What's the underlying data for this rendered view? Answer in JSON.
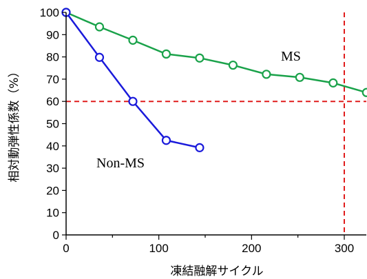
{
  "chart_data": {
    "type": "line",
    "title": "",
    "xlabel": "凍結融解サイクル",
    "ylabel": "相対動弾性係数（%）",
    "xlim": [
      0,
      325
    ],
    "ylim": [
      0,
      100
    ],
    "xticks": [
      0,
      100,
      200,
      300
    ],
    "yticks": [
      0,
      10,
      20,
      30,
      40,
      50,
      60,
      70,
      80,
      90,
      100
    ],
    "grid": false,
    "legend": "none",
    "series": [
      {
        "name": "MS",
        "color": "#1aa24a",
        "marker": "circle",
        "x": [
          0,
          36,
          72,
          108,
          144,
          180,
          216,
          252,
          288,
          324
        ],
        "y": [
          100,
          93.5,
          87.5,
          81.3,
          79.5,
          76.3,
          72.2,
          70.8,
          68.3,
          64.0
        ]
      },
      {
        "name": "Non-MS",
        "color": "#1a1adb",
        "marker": "circle",
        "x": [
          0,
          36,
          72,
          108,
          144
        ],
        "y": [
          100,
          79.8,
          60.0,
          42.5,
          39.2
        ]
      }
    ],
    "reference_lines": [
      {
        "orientation": "horizontal",
        "value": 60,
        "color": "#e01b1b",
        "style": "dashed"
      },
      {
        "orientation": "vertical",
        "value": 300,
        "color": "#e01b1b",
        "style": "dashed"
      }
    ]
  }
}
